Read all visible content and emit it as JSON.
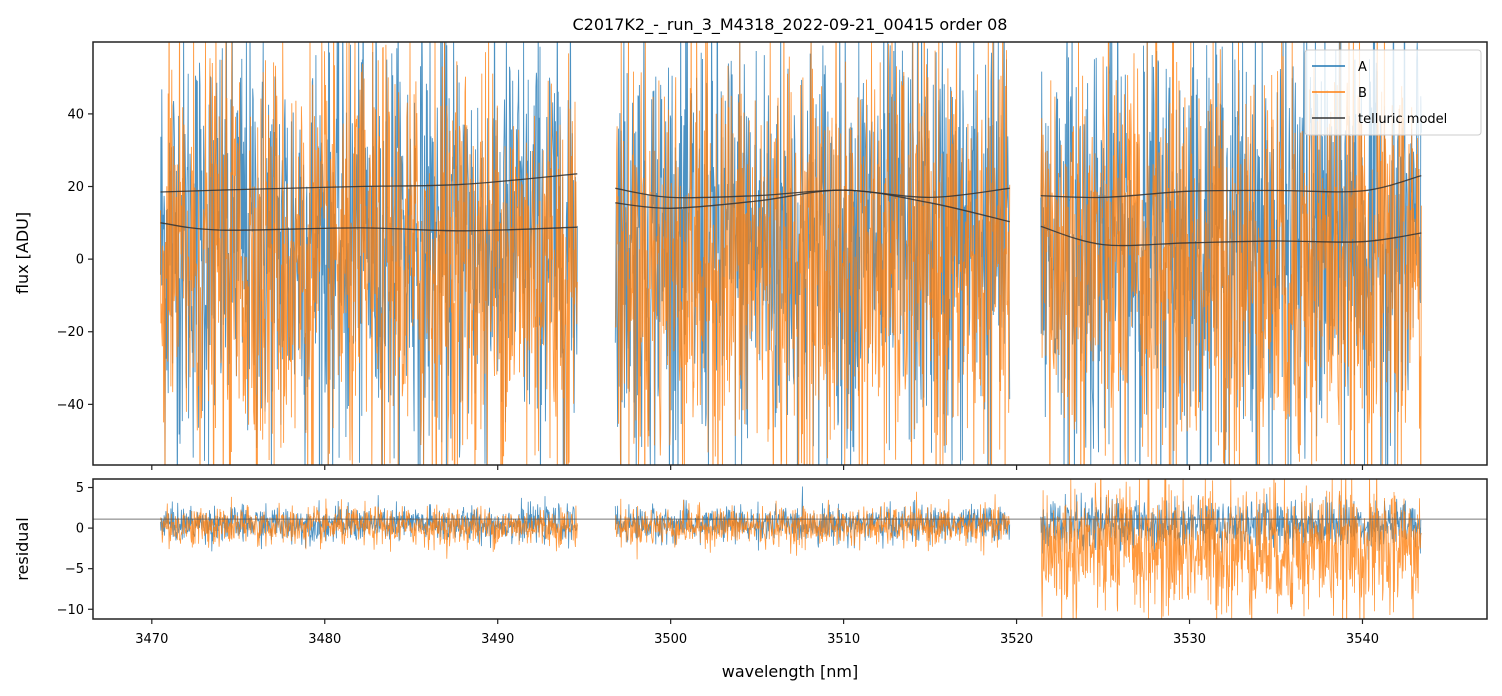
{
  "chart_data": {
    "type": "line",
    "title": "C2017K2_-_run_3_M4318_2022-09-21_00415  order 08",
    "xlabel": "wavelength [nm]",
    "xlim": [
      3466.6,
      3547.2
    ],
    "x_ticks": [
      3470,
      3480,
      3490,
      3500,
      3510,
      3520,
      3530,
      3540
    ],
    "x_tick_labels": [
      "3470",
      "3480",
      "3490",
      "3500",
      "3510",
      "3520",
      "3530",
      "3540"
    ],
    "colors": {
      "A": "#1f77b4",
      "B": "#ff7f0e",
      "telluric": "#333333",
      "residual_ref": "#555555"
    },
    "legend": {
      "placement": "top-right",
      "entries": [
        "A",
        "B",
        "telluric model"
      ]
    },
    "segments_nm": [
      [
        3470.5,
        3494.6
      ],
      [
        3496.8,
        3519.6
      ],
      [
        3521.4,
        3543.4
      ]
    ],
    "panels": [
      {
        "name": "flux",
        "ylabel": "flux [ADU]",
        "ylim": [
          -56.7,
          59.8
        ],
        "y_ticks": [
          40,
          20,
          0,
          -20,
          -40
        ],
        "y_tick_labels": [
          "40",
          "20",
          "0",
          "−20",
          "−40"
        ],
        "series": [
          {
            "name": "A",
            "kind": "noisy",
            "center": 5,
            "spread": 40
          },
          {
            "name": "B",
            "kind": "noisy",
            "center": -2,
            "spread": 40
          }
        ],
        "telluric_model": [
          {
            "segment": 0,
            "x": [
              3470.5,
              3476,
              3482,
              3488,
              3494.6
            ],
            "y": [
              18.5,
              19.3,
              20,
              20.6,
              23.5
            ]
          },
          {
            "segment": 0,
            "x": [
              3470.5,
              3474,
              3482,
              3488,
              3494.6
            ],
            "y": [
              10,
              8,
              8.6,
              7.8,
              8.8
            ]
          },
          {
            "segment": 1,
            "x": [
              3496.8,
              3500,
              3505,
              3510,
              3515,
              3519.6
            ],
            "y": [
              19.5,
              17,
              17.5,
              19,
              17,
              19.5
            ]
          },
          {
            "segment": 1,
            "x": [
              3496.8,
              3500,
              3505,
              3510,
              3515,
              3519.6
            ],
            "y": [
              15.5,
              14,
              16,
              19,
              15.5,
              10.3
            ]
          },
          {
            "segment": 2,
            "x": [
              3521.4,
              3525,
              3530,
              3535,
              3540,
              3543.4
            ],
            "y": [
              17.5,
              17,
              18.7,
              18.9,
              18.8,
              23
            ]
          },
          {
            "segment": 2,
            "x": [
              3521.4,
              3525,
              3530,
              3535,
              3540,
              3543.4
            ],
            "y": [
              9,
              4,
              4.5,
              5,
              4.8,
              7.2
            ]
          }
        ]
      },
      {
        "name": "residual",
        "ylabel": "residual",
        "ylim": [
          -11.2,
          6.05
        ],
        "y_ticks": [
          5,
          0,
          -5,
          -10
        ],
        "y_tick_labels": [
          "5",
          "0",
          "−5",
          "−10"
        ],
        "reference_line": 1.1,
        "series": [
          {
            "name": "A",
            "segments": [
              {
                "center": 0.5,
                "spread": 1.8
              },
              {
                "center": 0.5,
                "spread": 1.8
              },
              {
                "center": 0.5,
                "spread": 2.5
              }
            ]
          },
          {
            "name": "B",
            "segments": [
              {
                "center": 0.2,
                "spread": 2.0
              },
              {
                "center": 0.2,
                "spread": 2.0
              },
              {
                "center": -2.5,
                "spread": 7
              }
            ]
          }
        ]
      }
    ]
  }
}
